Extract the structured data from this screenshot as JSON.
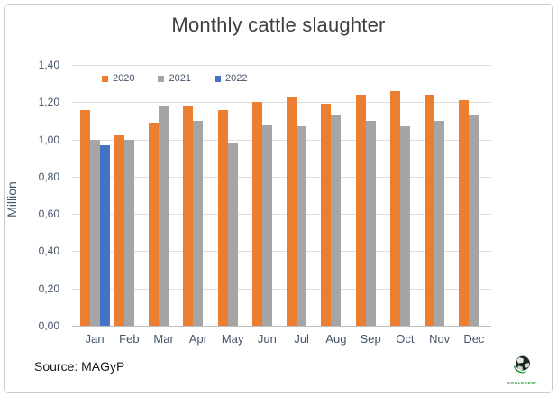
{
  "chart_data": {
    "type": "bar",
    "title": "Monthly cattle slaughter",
    "ylabel": "Million",
    "xlabel": "",
    "categories": [
      "Jan",
      "Feb",
      "Mar",
      "Apr",
      "May",
      "Jun",
      "Jul",
      "Aug",
      "Sep",
      "Oct",
      "Nov",
      "Dec"
    ],
    "series": [
      {
        "name": "2020",
        "color": "#ED7D31",
        "values": [
          1.16,
          1.02,
          1.09,
          1.18,
          1.16,
          1.2,
          1.23,
          1.19,
          1.24,
          1.26,
          1.24,
          1.21
        ]
      },
      {
        "name": "2021",
        "color": "#A5A5A5",
        "values": [
          1.0,
          1.0,
          1.18,
          1.1,
          0.98,
          1.08,
          1.07,
          1.13,
          1.1,
          1.07,
          1.1,
          1.13
        ]
      },
      {
        "name": "2022",
        "color": "#4472C4",
        "values": [
          0.97,
          null,
          null,
          null,
          null,
          null,
          null,
          null,
          null,
          null,
          null,
          null
        ]
      }
    ],
    "ylim": [
      0,
      1.4
    ],
    "ytick_step": 0.2,
    "ytick_labels_top_to_bottom": [
      "1,40",
      "1,20",
      "1,00",
      "0,80",
      "0,60",
      "0,40",
      "0,20",
      "0,00"
    ],
    "decimal_separator": ",",
    "grid": true,
    "legend_position": "inside-top-left"
  },
  "footer": {
    "source": "Source: MAGyP"
  },
  "logo": {
    "text": "WORLDBEEF",
    "accent_color": "#2e9e44"
  },
  "frame": {
    "border_color": "#c9c9c9",
    "background": "#ffffff"
  }
}
